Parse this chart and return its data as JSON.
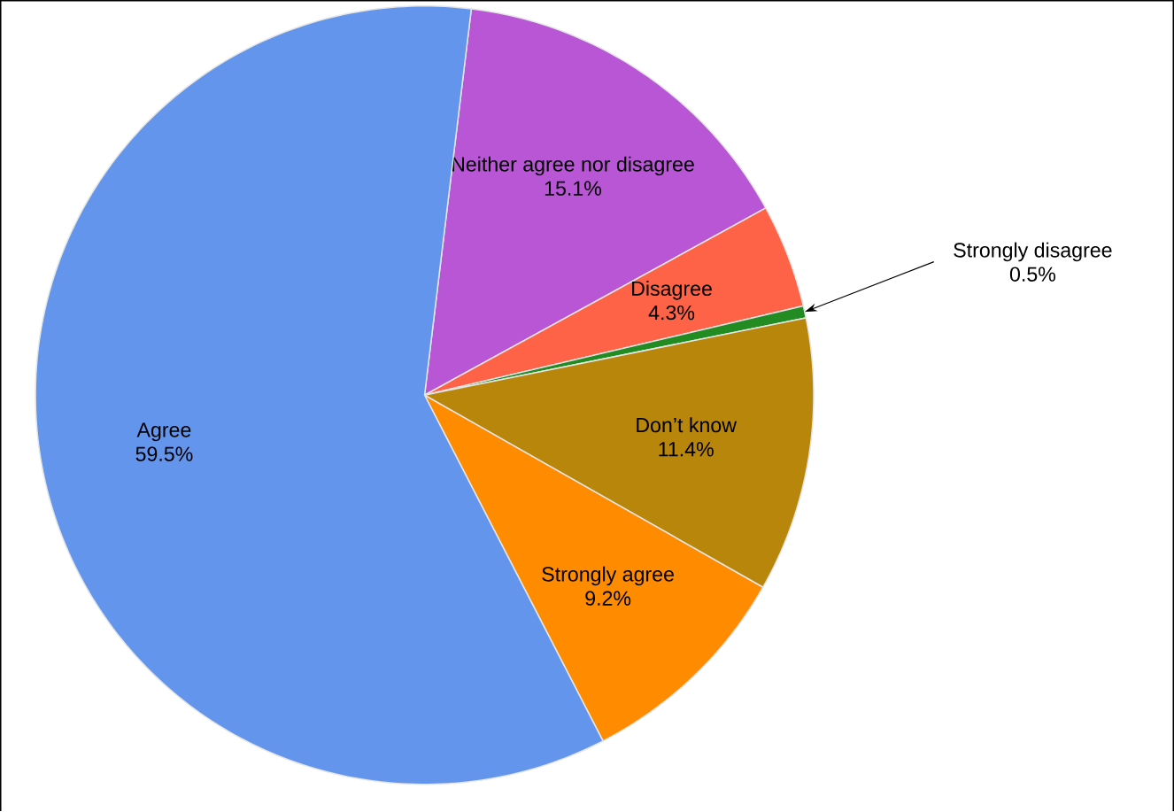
{
  "chart_data": {
    "type": "pie",
    "categories": [
      "Neither agree nor disagree",
      "Disagree",
      "Strongly disagree",
      "Don’t know",
      "Strongly agree",
      "Agree"
    ],
    "values": [
      15.1,
      4.3,
      0.5,
      11.4,
      9.2,
      59.5
    ],
    "colors": [
      "#b856d6",
      "#ff6347",
      "#228b22",
      "#b8860b",
      "#ff8c00",
      "#6495ed"
    ],
    "value_labels": [
      "15.1%",
      "4.3%",
      "0.5%",
      "11.4%",
      "9.2%",
      "59.5%"
    ]
  }
}
